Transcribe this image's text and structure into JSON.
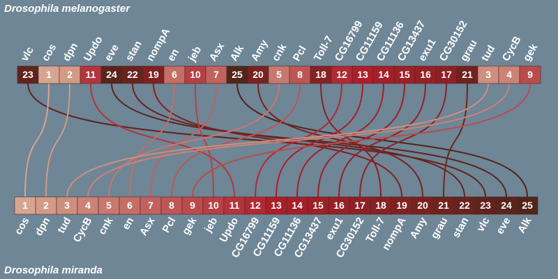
{
  "top": {
    "title": "Drosophila melanogaster",
    "genes": [
      {
        "name": "vlc",
        "rank": 23
      },
      {
        "name": "cos",
        "rank": 1
      },
      {
        "name": "dpn",
        "rank": 2
      },
      {
        "name": "Updo",
        "rank": 11
      },
      {
        "name": "eve",
        "rank": 24
      },
      {
        "name": "stan",
        "rank": 22
      },
      {
        "name": "nompA",
        "rank": 19
      },
      {
        "name": "en",
        "rank": 6
      },
      {
        "name": "jeb",
        "rank": 10
      },
      {
        "name": "Asx",
        "rank": 7
      },
      {
        "name": "Alk",
        "rank": 25
      },
      {
        "name": "Amy",
        "rank": 20
      },
      {
        "name": "cnk",
        "rank": 5
      },
      {
        "name": "Pcl",
        "rank": 8
      },
      {
        "name": "Toll-7",
        "rank": 18
      },
      {
        "name": "CG16799",
        "rank": 12
      },
      {
        "name": "CG11159",
        "rank": 13
      },
      {
        "name": "CG11136",
        "rank": 14
      },
      {
        "name": "CG13437",
        "rank": 15
      },
      {
        "name": "exu1",
        "rank": 16
      },
      {
        "name": "CG30152",
        "rank": 17
      },
      {
        "name": "grau",
        "rank": 21
      },
      {
        "name": "tud",
        "rank": 3
      },
      {
        "name": "CycB",
        "rank": 4
      },
      {
        "name": "gek",
        "rank": 9
      }
    ]
  },
  "bottom": {
    "title": "Drosophila miranda",
    "genes": [
      {
        "name": "cos",
        "rank": 1
      },
      {
        "name": "dpn",
        "rank": 2
      },
      {
        "name": "tud",
        "rank": 3
      },
      {
        "name": "CycB",
        "rank": 4
      },
      {
        "name": "cnk",
        "rank": 5
      },
      {
        "name": "en",
        "rank": 6
      },
      {
        "name": "Asx",
        "rank": 7
      },
      {
        "name": "Pcl",
        "rank": 8
      },
      {
        "name": "gek",
        "rank": 9
      },
      {
        "name": "jeb",
        "rank": 10
      },
      {
        "name": "Updo",
        "rank": 11
      },
      {
        "name": "CG16799",
        "rank": 12
      },
      {
        "name": "CG11159",
        "rank": 13
      },
      {
        "name": "CG11136",
        "rank": 14
      },
      {
        "name": "CG13437",
        "rank": 15
      },
      {
        "name": "exu1",
        "rank": 16
      },
      {
        "name": "CG30152",
        "rank": 17
      },
      {
        "name": "Toll-7",
        "rank": 18
      },
      {
        "name": "nompA",
        "rank": 19
      },
      {
        "name": "Amy",
        "rank": 20
      },
      {
        "name": "grau",
        "rank": 21
      },
      {
        "name": "stan",
        "rank": 22
      },
      {
        "name": "vlc",
        "rank": 23
      },
      {
        "name": "eve",
        "rank": 24
      },
      {
        "name": "Alk",
        "rank": 25
      }
    ]
  }
}
